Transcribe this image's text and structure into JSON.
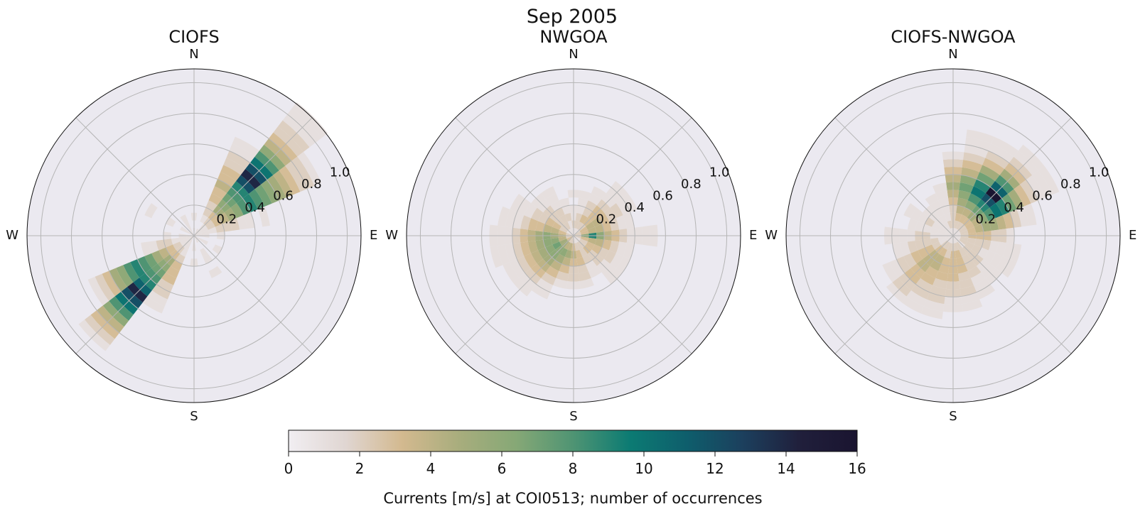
{
  "suptitle": "Sep 2005",
  "colors": {
    "background": "#ebe9f0",
    "grid": "#b5b5b5",
    "colormap": [
      "#f1eef2",
      "#e0d6d2",
      "#d3b98f",
      "#a8ad7d",
      "#86a876",
      "#4f9473",
      "#0c7b73",
      "#0e5e6c",
      "#1c3f5d",
      "#201f3b",
      "#1a1430"
    ]
  },
  "chart_data": [
    {
      "type": "polar-histogram",
      "title": "CIOFS",
      "direction_labels": [
        "N",
        "E",
        "S",
        "W"
      ],
      "radial_ticks": [
        "0.2",
        "0.4",
        "0.6",
        "0.8",
        "1.0"
      ],
      "rmax": 1.09,
      "sector_width_deg": 15,
      "radial_bin": 0.05,
      "sectors": [
        {
          "dir": 45,
          "counts": [
            1,
            1,
            2,
            3,
            5,
            6,
            7,
            8,
            9,
            12,
            14,
            12,
            10,
            8,
            6,
            4,
            3,
            2,
            2,
            1,
            1,
            1
          ]
        },
        {
          "dir": 60,
          "counts": [
            1,
            1,
            2,
            3,
            4,
            5,
            6,
            8,
            9,
            8,
            7,
            6,
            5,
            4,
            3,
            2,
            2,
            1
          ]
        },
        {
          "dir": 30,
          "counts": [
            1,
            0,
            1,
            2,
            2,
            3,
            3,
            4,
            3,
            3,
            2,
            2,
            1,
            1
          ]
        },
        {
          "dir": 75,
          "counts": [
            1,
            1,
            1,
            2,
            2,
            2,
            1,
            1,
            0,
            1
          ]
        },
        {
          "dir": 225,
          "counts": [
            1,
            1,
            2,
            3,
            5,
            6,
            7,
            8,
            9,
            11,
            14,
            12,
            10,
            8,
            6,
            4,
            3,
            2,
            1
          ]
        },
        {
          "dir": 240,
          "counts": [
            1,
            1,
            2,
            3,
            4,
            5,
            7,
            8,
            9,
            8,
            6,
            5,
            3,
            2,
            1
          ]
        },
        {
          "dir": 210,
          "counts": [
            1,
            1,
            1,
            2,
            3,
            3,
            3,
            2,
            2,
            1,
            1
          ]
        },
        {
          "dir": 255,
          "counts": [
            1,
            1,
            1,
            2,
            2,
            1,
            1
          ]
        },
        {
          "dir": 0,
          "counts": [
            1,
            0,
            1
          ]
        },
        {
          "dir": 90,
          "counts": [
            1,
            1,
            0,
            1
          ]
        },
        {
          "dir": 120,
          "counts": [
            1,
            1,
            0,
            1
          ]
        },
        {
          "dir": 150,
          "counts": [
            1,
            0,
            1,
            1,
            0,
            1
          ]
        },
        {
          "dir": 180,
          "counts": [
            1,
            1,
            0,
            1
          ]
        },
        {
          "dir": 270,
          "counts": [
            1,
            1,
            0,
            1
          ]
        },
        {
          "dir": 300,
          "counts": [
            1,
            1,
            0,
            1,
            0,
            0,
            1
          ]
        },
        {
          "dir": 330,
          "counts": [
            1,
            1,
            1
          ]
        }
      ]
    },
    {
      "type": "polar-histogram",
      "title": "NWGOA",
      "direction_labels": [
        "N",
        "E",
        "S",
        "W"
      ],
      "radial_ticks": [
        "0.2",
        "0.4",
        "0.6",
        "0.8",
        "1.0"
      ],
      "rmax": 1.09,
      "sector_width_deg": 15,
      "radial_bin": 0.05,
      "sectors": [
        {
          "dir": 0,
          "counts": [
            1,
            2,
            1,
            1,
            0,
            1
          ]
        },
        {
          "dir": 15,
          "counts": [
            1,
            2,
            2,
            1,
            1,
            1
          ]
        },
        {
          "dir": 30,
          "counts": [
            1,
            2,
            3,
            2,
            2,
            1,
            1
          ]
        },
        {
          "dir": 45,
          "counts": [
            1,
            2,
            3,
            3,
            3,
            2,
            1,
            1,
            1
          ]
        },
        {
          "dir": 60,
          "counts": [
            2,
            3,
            4,
            4,
            3,
            2,
            2,
            1,
            1
          ]
        },
        {
          "dir": 75,
          "counts": [
            2,
            3,
            4,
            4,
            3,
            2,
            1,
            1
          ]
        },
        {
          "dir": 90,
          "counts": [
            2,
            6,
            9,
            6,
            4,
            3,
            2,
            1,
            1,
            1,
            1
          ]
        },
        {
          "dir": 105,
          "counts": [
            2,
            3,
            4,
            4,
            3,
            2,
            1,
            1
          ]
        },
        {
          "dir": 120,
          "counts": [
            1,
            2,
            3,
            3,
            2,
            2,
            1,
            1
          ]
        },
        {
          "dir": 135,
          "counts": [
            1,
            2,
            3,
            2,
            2,
            1,
            1,
            1
          ]
        },
        {
          "dir": 150,
          "counts": [
            1,
            2,
            2,
            2,
            1,
            1
          ]
        },
        {
          "dir": 165,
          "counts": [
            1,
            2,
            3,
            3,
            2,
            2,
            1
          ]
        },
        {
          "dir": 180,
          "counts": [
            2,
            3,
            4,
            3,
            2,
            2,
            1
          ]
        },
        {
          "dir": 195,
          "counts": [
            2,
            4,
            5,
            4,
            3,
            2,
            1
          ]
        },
        {
          "dir": 210,
          "counts": [
            2,
            4,
            6,
            5,
            4,
            3,
            2,
            1,
            1
          ]
        },
        {
          "dir": 225,
          "counts": [
            3,
            5,
            6,
            6,
            5,
            4,
            3,
            2,
            1,
            1
          ]
        },
        {
          "dir": 240,
          "counts": [
            3,
            5,
            7,
            6,
            5,
            4,
            3,
            2,
            1,
            1
          ]
        },
        {
          "dir": 255,
          "counts": [
            2,
            4,
            6,
            6,
            5,
            4,
            3,
            2,
            1,
            1,
            1
          ]
        },
        {
          "dir": 270,
          "counts": [
            2,
            4,
            5,
            6,
            5,
            4,
            3,
            2,
            1,
            1,
            1
          ]
        },
        {
          "dir": 285,
          "counts": [
            2,
            3,
            4,
            4,
            3,
            3,
            2,
            1,
            1,
            1
          ]
        },
        {
          "dir": 300,
          "counts": [
            1,
            2,
            3,
            3,
            2,
            2,
            1,
            1,
            1
          ]
        },
        {
          "dir": 315,
          "counts": [
            1,
            2,
            2,
            2,
            2,
            1,
            1
          ]
        },
        {
          "dir": 330,
          "counts": [
            1,
            2,
            2,
            2,
            1,
            1,
            1
          ]
        },
        {
          "dir": 345,
          "counts": [
            1,
            1,
            2,
            1,
            1
          ]
        }
      ]
    },
    {
      "type": "polar-histogram",
      "title": "CIOFS-NWGOA",
      "direction_labels": [
        "N",
        "E",
        "S",
        "W"
      ],
      "radial_ticks": [
        "0.2",
        "0.4",
        "0.6",
        "0.8",
        "1.0"
      ],
      "rmax": 1.09,
      "sector_width_deg": 15,
      "radial_bin": 0.05,
      "sectors": [
        {
          "dir": 0,
          "counts": [
            1,
            2,
            2,
            2,
            3,
            4,
            5,
            4,
            3,
            2,
            1
          ]
        },
        {
          "dir": 15,
          "counts": [
            1,
            2,
            3,
            4,
            5,
            6,
            7,
            6,
            4,
            3,
            2,
            1,
            1,
            1
          ]
        },
        {
          "dir": 30,
          "counts": [
            1,
            2,
            3,
            4,
            6,
            8,
            10,
            9,
            7,
            5,
            3,
            2,
            1,
            1
          ]
        },
        {
          "dir": 45,
          "counts": [
            1,
            2,
            3,
            5,
            7,
            9,
            12,
            16,
            11,
            8,
            5,
            3,
            2,
            1,
            1
          ]
        },
        {
          "dir": 60,
          "counts": [
            1,
            2,
            3,
            4,
            6,
            8,
            10,
            9,
            7,
            5,
            3,
            2,
            1,
            1,
            1
          ]
        },
        {
          "dir": 75,
          "counts": [
            1,
            2,
            3,
            4,
            5,
            5,
            4,
            3,
            2,
            1,
            1
          ]
        },
        {
          "dir": 90,
          "counts": [
            1,
            2,
            3,
            3,
            3,
            2,
            2,
            1
          ]
        },
        {
          "dir": 105,
          "counts": [
            1,
            2,
            2,
            2,
            2,
            1,
            1,
            1,
            1
          ]
        },
        {
          "dir": 120,
          "counts": [
            1,
            2,
            2,
            2,
            1,
            1,
            1,
            1,
            1
          ]
        },
        {
          "dir": 135,
          "counts": [
            1,
            1,
            2,
            2,
            2,
            1,
            1,
            1
          ]
        },
        {
          "dir": 150,
          "counts": [
            1,
            2,
            2,
            2,
            2,
            2,
            1,
            1,
            1
          ]
        },
        {
          "dir": 165,
          "counts": [
            1,
            2,
            3,
            3,
            3,
            2,
            2,
            2,
            1,
            1
          ]
        },
        {
          "dir": 180,
          "counts": [
            1,
            2,
            3,
            3,
            3,
            3,
            2,
            2,
            1,
            1
          ]
        },
        {
          "dir": 195,
          "counts": [
            1,
            2,
            2,
            3,
            3,
            3,
            2,
            2,
            2,
            1,
            1
          ]
        },
        {
          "dir": 210,
          "counts": [
            1,
            2,
            3,
            4,
            4,
            3,
            3,
            2,
            2,
            1,
            1
          ]
        },
        {
          "dir": 225,
          "counts": [
            1,
            2,
            3,
            4,
            4,
            4,
            3,
            3,
            2,
            2,
            1
          ]
        },
        {
          "dir": 240,
          "counts": [
            1,
            1,
            2,
            3,
            3,
            3,
            2,
            2,
            1,
            1
          ]
        },
        {
          "dir": 255,
          "counts": [
            1,
            1,
            2,
            2,
            2,
            2,
            1,
            1
          ]
        },
        {
          "dir": 270,
          "counts": [
            1,
            1,
            1,
            2,
            2,
            1,
            1,
            1,
            1
          ]
        },
        {
          "dir": 285,
          "counts": [
            1,
            1,
            1,
            1,
            1,
            1
          ]
        },
        {
          "dir": 300,
          "counts": [
            1,
            1,
            1,
            2,
            1,
            1,
            1
          ]
        },
        {
          "dir": 315,
          "counts": [
            1,
            1,
            1,
            1,
            1
          ]
        },
        {
          "dir": 330,
          "counts": [
            1,
            1,
            1,
            1,
            1,
            1
          ]
        },
        {
          "dir": 345,
          "counts": [
            1,
            2,
            1,
            1,
            1,
            1,
            1
          ]
        }
      ]
    }
  ],
  "colorbar": {
    "min": 0,
    "max": 16,
    "ticks": [
      "0",
      "2",
      "4",
      "6",
      "8",
      "10",
      "12",
      "14",
      "16"
    ],
    "label": "Currents [m/s] at COI0513; number of occurrences"
  }
}
